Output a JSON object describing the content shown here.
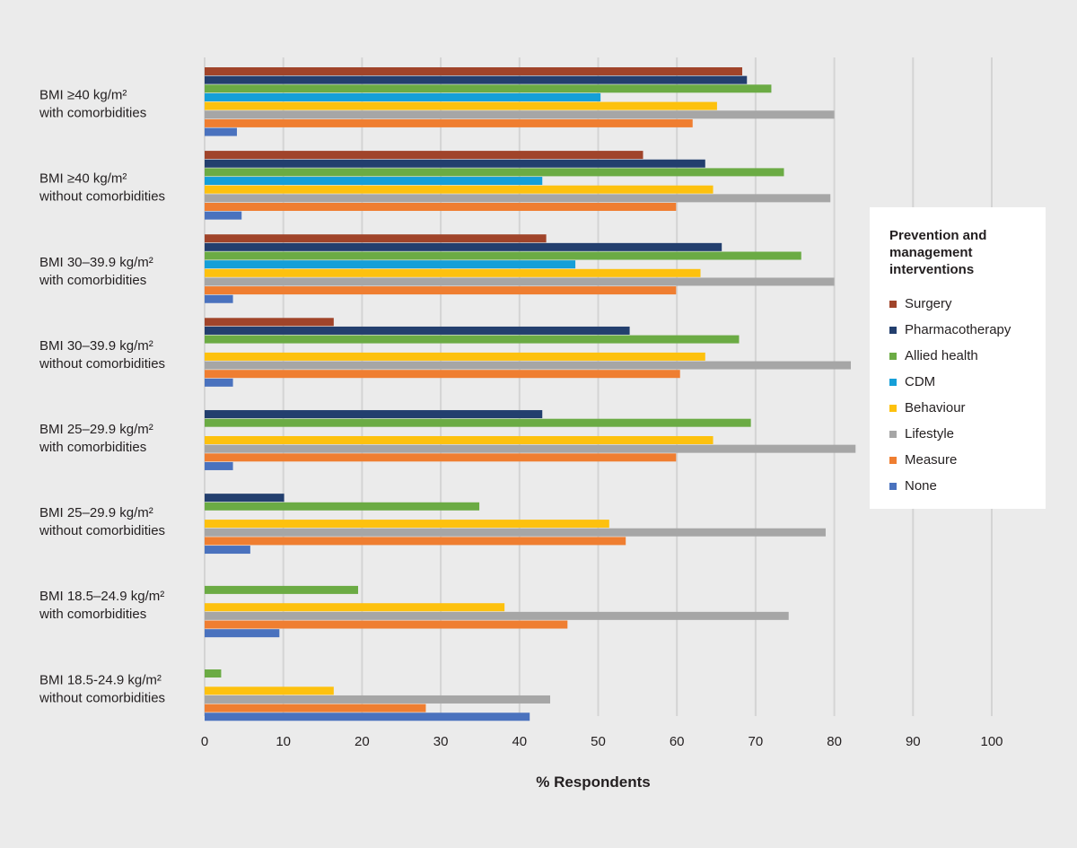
{
  "chart_data": {
    "type": "bar",
    "orientation": "horizontal",
    "categories": [
      [
        "BMI ≥40 kg/m²",
        "with comorbidities"
      ],
      [
        "BMI ≥40 kg/m²",
        "without comorbidities"
      ],
      [
        "BMI 30–39.9 kg/m²",
        "with comorbidities"
      ],
      [
        "BMI 30–39.9 kg/m²",
        "without comorbidities"
      ],
      [
        "BMI 25–29.9 kg/m²",
        "with comorbidities"
      ],
      [
        "BMI 25–29.9 kg/m²",
        "without comorbidities"
      ],
      [
        "BMI 18.5–24.9 kg/m²",
        "with comorbidities"
      ],
      [
        "BMI 18.5-24.9 kg/m²",
        "without comorbidities"
      ]
    ],
    "series": [
      {
        "name": "Surgery",
        "color": "#a0442a",
        "values": [
          68.3,
          55.7,
          43.4,
          16.4,
          0,
          0,
          0,
          0
        ]
      },
      {
        "name": "Pharmacotherapy",
        "color": "#233f6e",
        "values": [
          68.9,
          63.6,
          65.7,
          54,
          42.9,
          10.1,
          0,
          0
        ]
      },
      {
        "name": "Allied health",
        "color": "#6bab44",
        "values": [
          72,
          73.6,
          75.8,
          67.9,
          69.4,
          34.9,
          19.5,
          2.1
        ]
      },
      {
        "name": "CDM",
        "color": "#159fd8",
        "values": [
          50.3,
          42.9,
          47.1,
          0,
          0,
          0,
          0,
          0
        ]
      },
      {
        "name": "Behaviour",
        "color": "#fdc10e",
        "values": [
          65.1,
          64.6,
          63,
          63.6,
          64.6,
          51.4,
          38.1,
          16.4
        ]
      },
      {
        "name": "Lifestyle",
        "color": "#a6a6a6",
        "values": [
          80,
          79.5,
          80,
          82.1,
          82.7,
          78.9,
          74.2,
          43.9
        ]
      },
      {
        "name": "Measure",
        "color": "#ef7e31",
        "values": [
          62,
          59.9,
          59.9,
          60.4,
          59.9,
          53.5,
          46.1,
          28.1
        ]
      },
      {
        "name": "None",
        "color": "#4a72be",
        "values": [
          4.1,
          4.7,
          3.6,
          3.6,
          3.6,
          5.8,
          9.5,
          41.3
        ]
      }
    ],
    "xticks": [
      "0",
      "10",
      "20",
      "30",
      "40",
      "50",
      "60",
      "70",
      "80",
      "90",
      "100"
    ],
    "xlim": [
      0,
      100
    ],
    "xlabel": "% Respondents",
    "ylabel": "",
    "grid": "vertical",
    "legend_title": "Prevention and management interventions",
    "legend_position": "right"
  }
}
